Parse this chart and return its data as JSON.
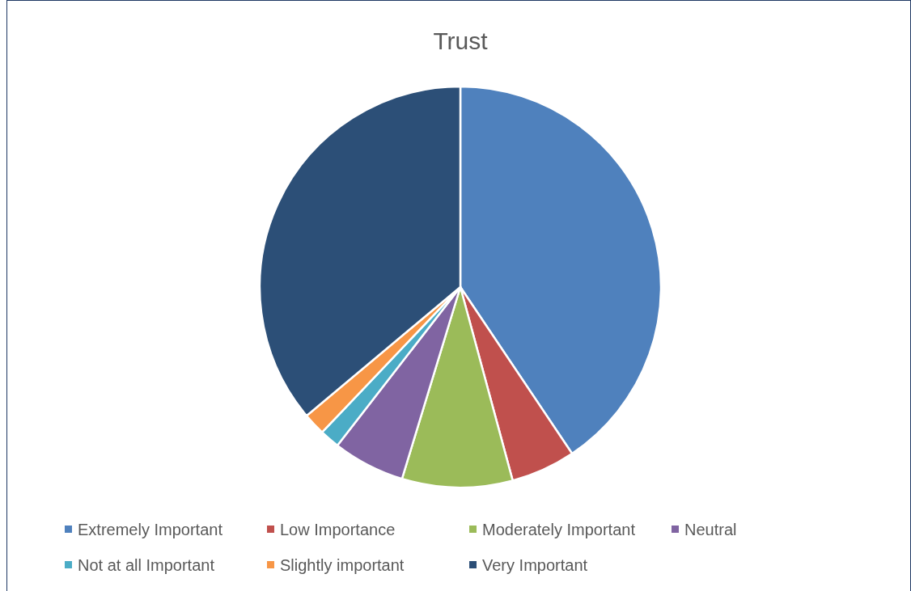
{
  "chart_data": {
    "type": "pie",
    "title": "Trust",
    "categories": [
      "Extremely Important",
      "Low Importance",
      "Moderately Important",
      "Neutral",
      "Not at all Important",
      "Slightly important",
      "Very Important"
    ],
    "values": [
      40.6,
      5.2,
      8.9,
      5.8,
      1.6,
      1.8,
      36.1
    ],
    "colors": [
      "#4f81bd",
      "#c0504d",
      "#9bbb59",
      "#8064a2",
      "#4bacc6",
      "#f79646",
      "#2c4f77"
    ],
    "legend": "bottom"
  }
}
